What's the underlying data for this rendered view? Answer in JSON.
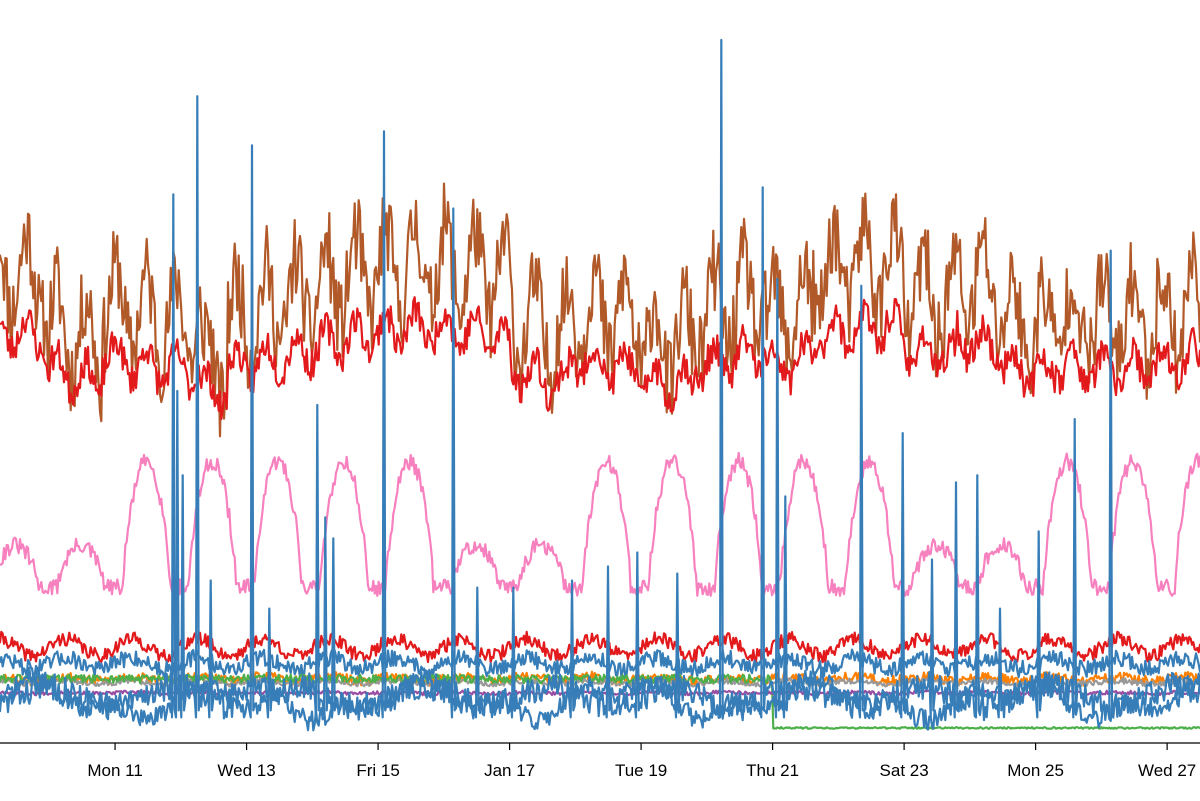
{
  "chart_data": {
    "type": "line",
    "title": "",
    "xlabel": "",
    "ylabel": "",
    "grid": false,
    "legend": "none",
    "x_range_days": [
      9.25,
      27.5
    ],
    "y_range": [
      0,
      100
    ],
    "ticks": [
      {
        "label": "Mon 11",
        "day": 11
      },
      {
        "label": "Wed 13",
        "day": 13
      },
      {
        "label": "Fri 15",
        "day": 15
      },
      {
        "label": "Jan 17",
        "day": 17
      },
      {
        "label": "Tue 19",
        "day": 19
      },
      {
        "label": "Thu 21",
        "day": 21
      },
      {
        "label": "Sat 23",
        "day": 23
      },
      {
        "label": "Mon 25",
        "day": 25
      },
      {
        "label": "Wed 27",
        "day": 27
      }
    ],
    "series": [
      {
        "name": "series-brown",
        "color": "#b15928",
        "model": "daily",
        "base": 64,
        "amp": 4,
        "noise": 6,
        "daily_amp": 6,
        "seed": 11,
        "low_days": [
          [
            9.95,
            10.8,
            -6
          ],
          [
            12.3,
            12.7,
            -6
          ],
          [
            17.0,
            17.9,
            -5
          ],
          [
            19.0,
            19.8,
            -3
          ],
          [
            20.9,
            21.6,
            -4
          ],
          [
            23.0,
            23.8,
            -4
          ],
          [
            24.5,
            25.2,
            -3
          ]
        ]
      },
      {
        "name": "series-red-upper",
        "color": "#e31a1c",
        "model": "daily",
        "base": 56,
        "amp": 3,
        "noise": 2.2,
        "daily_amp": 2.5,
        "seed": 23,
        "low_days": [
          [
            9.95,
            10.8,
            -4
          ],
          [
            12.3,
            12.7,
            -3
          ],
          [
            17.0,
            17.9,
            -4
          ],
          [
            19.0,
            19.8,
            -2
          ],
          [
            20.9,
            21.6,
            -3
          ],
          [
            23.0,
            23.8,
            -3
          ],
          [
            24.5,
            25.2,
            -2
          ]
        ]
      },
      {
        "name": "series-pink",
        "color": "#f781bf",
        "model": "pink",
        "base": 22,
        "peak": 40,
        "weekend_peak": 28,
        "noise": 1.2,
        "seed": 31
      },
      {
        "name": "series-red-lower",
        "color": "#e31a1c",
        "model": "flat",
        "base": 13.5,
        "noise": 1.0,
        "daily_amp": 1.2,
        "seed": 41
      },
      {
        "name": "series-blue-middle",
        "color": "#377eb8",
        "model": "flat",
        "base": 11.2,
        "noise": 1.2,
        "daily_amp": 0.8,
        "seed": 47
      },
      {
        "name": "series-orange",
        "color": "#ff7f00",
        "model": "flat",
        "base": 9.0,
        "noise": 0.7,
        "daily_amp": 0.3,
        "seed": 53
      },
      {
        "name": "series-gray",
        "color": "#999999",
        "model": "flat",
        "base": 8.5,
        "noise": 0.4,
        "daily_amp": 0.2,
        "seed": 59
      },
      {
        "name": "series-green",
        "color": "#4daf4a",
        "model": "step",
        "base": 9.0,
        "after": 2.0,
        "step_day": 21.0,
        "noise": 0.6,
        "seed": 61
      },
      {
        "name": "series-purple",
        "color": "#984ea3",
        "model": "flat",
        "base": 7.0,
        "noise": 0.25,
        "daily_amp": 0.1,
        "seed": 67
      },
      {
        "name": "series-blue-lower",
        "color": "#377eb8",
        "model": "wave",
        "base": 6.0,
        "noise": 1.5,
        "seed": 71
      },
      {
        "name": "series-blue-spikes",
        "color": "#377eb8",
        "model": "spikes",
        "base": 6.5,
        "noise": 2.0,
        "seed": 83,
        "spikes": [
          [
            11.88,
            78
          ],
          [
            11.95,
            50
          ],
          [
            12.02,
            38
          ],
          [
            12.25,
            92
          ],
          [
            12.45,
            23
          ],
          [
            13.08,
            85
          ],
          [
            13.35,
            19
          ],
          [
            14.08,
            48
          ],
          [
            14.2,
            32
          ],
          [
            14.32,
            29
          ],
          [
            15.1,
            87
          ],
          [
            16.15,
            76
          ],
          [
            16.5,
            22
          ],
          [
            17.05,
            22
          ],
          [
            17.95,
            23
          ],
          [
            18.5,
            25
          ],
          [
            18.95,
            27
          ],
          [
            19.55,
            24
          ],
          [
            20.22,
            100
          ],
          [
            20.85,
            79
          ],
          [
            21.08,
            66
          ],
          [
            21.2,
            35
          ],
          [
            22.35,
            65
          ],
          [
            22.98,
            44
          ],
          [
            23.42,
            26
          ],
          [
            23.78,
            37
          ],
          [
            24.12,
            38
          ],
          [
            24.45,
            19
          ],
          [
            25.05,
            30
          ],
          [
            25.6,
            46
          ],
          [
            26.15,
            70
          ]
        ]
      }
    ]
  }
}
